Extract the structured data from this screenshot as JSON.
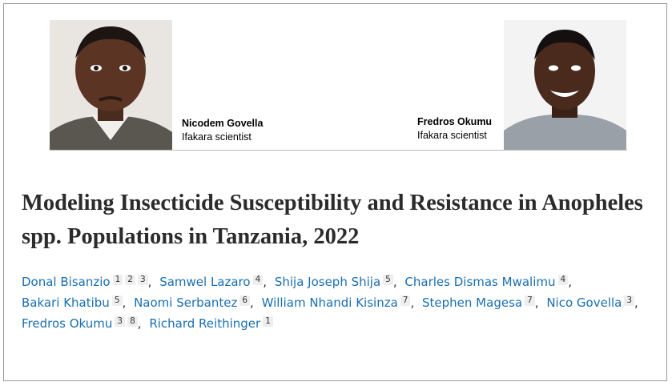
{
  "profiles": [
    {
      "name": "Nicodem Govella",
      "role": "Ifakara scientist"
    },
    {
      "name": "Fredros Okumu",
      "role": "Ifakara scientist"
    }
  ],
  "title": "Modeling Insecticide Susceptibility and Resistance in Anopheles spp. Populations in Tanzania, 2022",
  "authors": [
    {
      "name": "Donal Bisanzio",
      "affiliations": [
        1,
        2,
        3
      ]
    },
    {
      "name": "Samwel Lazaro",
      "affiliations": [
        4
      ]
    },
    {
      "name": "Shija Joseph Shija",
      "affiliations": [
        5
      ]
    },
    {
      "name": "Charles Dismas Mwalimu",
      "affiliations": [
        4
      ]
    },
    {
      "name": "Bakari Khatibu",
      "affiliations": [
        5
      ]
    },
    {
      "name": "Naomi Serbantez",
      "affiliations": [
        6
      ]
    },
    {
      "name": "William Nhandi Kisinza",
      "affiliations": [
        7
      ]
    },
    {
      "name": "Stephen Magesa",
      "affiliations": [
        7
      ]
    },
    {
      "name": "Nico Govella",
      "affiliations": [
        3
      ]
    },
    {
      "name": "Fredros Okumu",
      "affiliations": [
        3,
        8
      ]
    },
    {
      "name": "Richard Reithinger",
      "affiliations": [
        1
      ]
    }
  ]
}
